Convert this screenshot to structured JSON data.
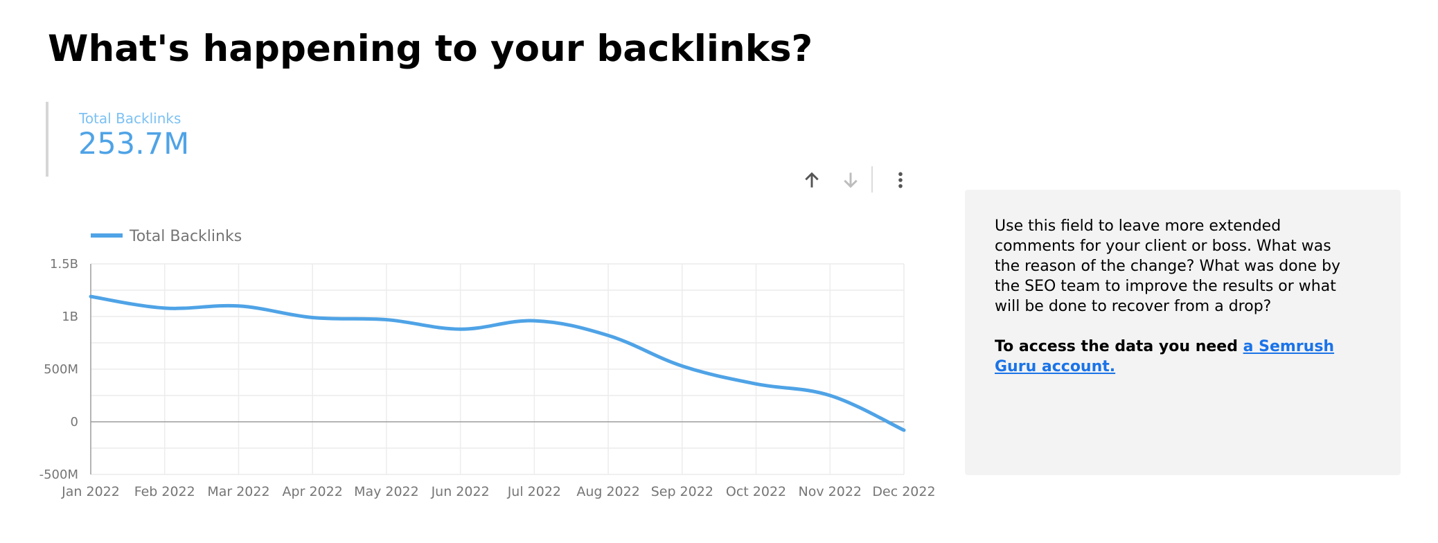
{
  "page": {
    "title": "What's happening to your backlinks?"
  },
  "scorecard": {
    "label": "Total Backlinks",
    "value": "253.7M"
  },
  "toolbar": {
    "icons": [
      "arrow-up-icon",
      "arrow-down-icon",
      "more-vert-icon"
    ]
  },
  "comment": {
    "body": "Use this field to leave more extended comments for your client or boss. What was the reason of the change? What was done by the SEO team to improve the results or what will be done to recover from a drop?",
    "access_prefix": "To access the data you need ",
    "access_link": "a Semrush Guru account."
  },
  "colors": {
    "series": "#4fa3e6",
    "scorecard_label": "#7cc1f3",
    "link": "#1a73e8",
    "panel_bg": "#f3f3f3"
  },
  "chart_data": {
    "type": "line",
    "legend_position": "top-left",
    "grid": true,
    "categories": [
      "Jan 2022",
      "Feb 2022",
      "Mar 2022",
      "Apr 2022",
      "May 2022",
      "Jun 2022",
      "Jul 2022",
      "Aug 2022",
      "Sep 2022",
      "Oct 2022",
      "Nov 2022",
      "Dec 2022"
    ],
    "series": [
      {
        "name": "Total Backlinks",
        "values": [
          1190000000,
          1080000000,
          1100000000,
          990000000,
          970000000,
          880000000,
          960000000,
          820000000,
          530000000,
          360000000,
          250000000,
          -80000000
        ]
      }
    ],
    "ylim": [
      -500000000,
      1500000000
    ],
    "yticks": [
      -500000000,
      0,
      500000000,
      1000000000,
      1500000000
    ],
    "ytick_labels": [
      "-500M",
      "0",
      "500M",
      "1B",
      "1.5B"
    ]
  }
}
